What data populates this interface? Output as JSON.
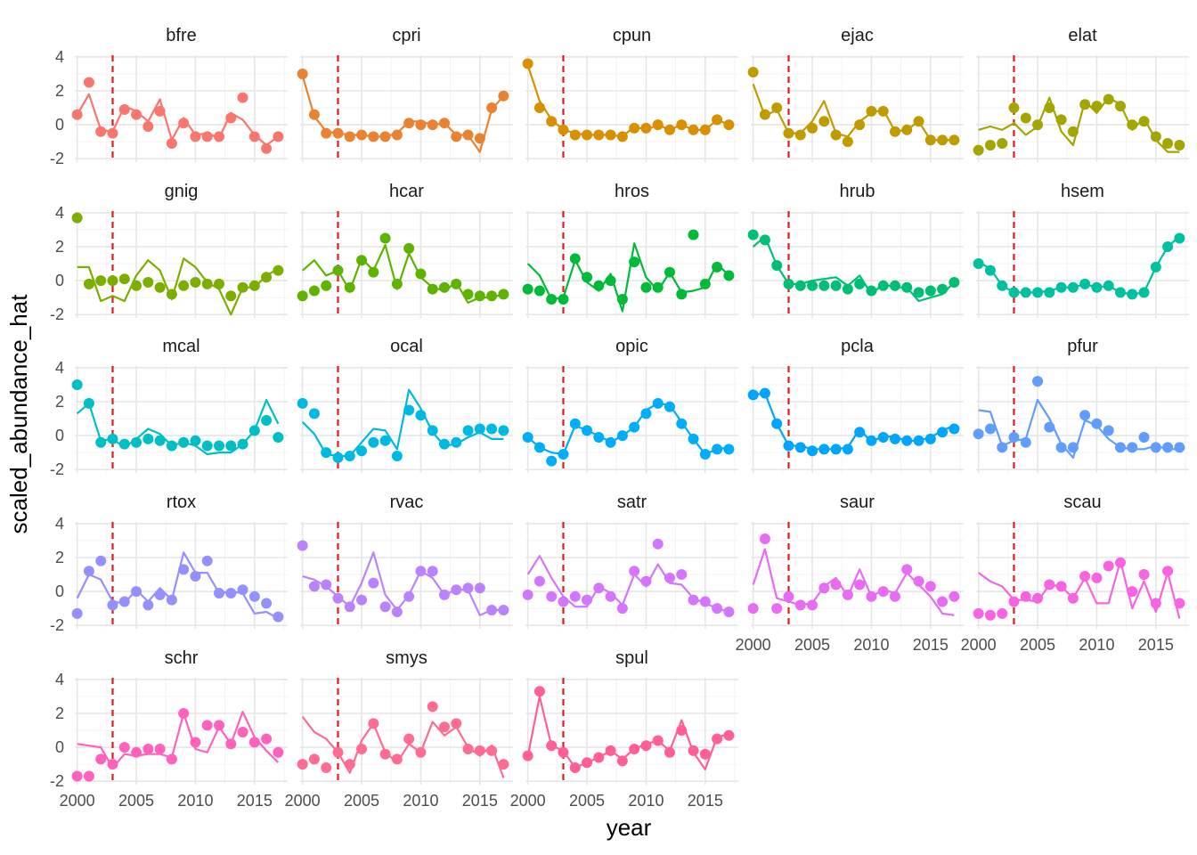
{
  "chart_data": {
    "type": "line",
    "xlabel": "year",
    "ylabel": "scaled_abundance_hat",
    "xlim": [
      1999.8,
      2017.8
    ],
    "ylim": [
      -2.2,
      4.1
    ],
    "x_ticks": [
      2000,
      2005,
      2010,
      2015
    ],
    "y_ticks": [
      -2,
      0,
      2,
      4
    ],
    "reference_line": {
      "x": 2003,
      "color": "#E41A1C",
      "style": "dashed"
    },
    "grid": true,
    "legend": "none",
    "years": [
      2000,
      2001,
      2002,
      2003,
      2004,
      2005,
      2006,
      2007,
      2008,
      2009,
      2010,
      2011,
      2012,
      2013,
      2014,
      2015,
      2016,
      2017
    ],
    "panels": [
      {
        "name": "bfre",
        "color": "#F8766D",
        "points": [
          0.6,
          2.5,
          -0.4,
          -0.5,
          0.9,
          0.6,
          -0.1,
          0.8,
          -1.1,
          0.1,
          -0.7,
          -0.7,
          -0.7,
          0.4,
          1.6,
          -0.7,
          -1.4,
          -0.7
        ],
        "line": [
          0.6,
          1.8,
          -0.3,
          -0.4,
          1.1,
          0.8,
          0.2,
          1.5,
          -0.9,
          0.4,
          -0.6,
          -0.5,
          -0.8,
          0.7,
          0.3,
          -0.6,
          -1.2,
          -0.7
        ]
      },
      {
        "name": "cpri",
        "color": "#EA8331",
        "points": [
          3.0,
          0.6,
          -0.5,
          -0.5,
          -0.7,
          -0.6,
          -0.7,
          -0.7,
          -0.6,
          0.1,
          0.0,
          0.0,
          0.1,
          -0.7,
          -0.6,
          -0.8,
          1.0,
          1.7
        ],
        "line": [
          2.9,
          0.5,
          -0.4,
          -0.5,
          -0.6,
          -0.6,
          -0.7,
          -0.7,
          -0.5,
          0.2,
          0.2,
          0.0,
          0.1,
          -0.6,
          -0.6,
          -1.6,
          0.9,
          1.7
        ]
      },
      {
        "name": "cpun",
        "color": "#D89000",
        "points": [
          3.6,
          1.0,
          0.2,
          -0.3,
          -0.6,
          -0.6,
          -0.6,
          -0.6,
          -0.7,
          -0.2,
          -0.2,
          0.0,
          -0.3,
          0.0,
          -0.3,
          -0.3,
          0.3,
          0.0
        ],
        "line": [
          3.5,
          1.4,
          0.3,
          -0.3,
          -0.5,
          -0.6,
          -0.6,
          -0.6,
          -0.7,
          -0.1,
          -0.3,
          0.0,
          -0.3,
          0.0,
          -0.3,
          -0.3,
          0.3,
          0.0
        ]
      },
      {
        "name": "ejac",
        "color": "#C09B00",
        "points": [
          3.1,
          0.6,
          1.0,
          -0.5,
          -0.6,
          -0.2,
          0.2,
          -0.6,
          -1.0,
          0.0,
          0.8,
          0.8,
          -0.4,
          -0.3,
          0.2,
          -0.9,
          -0.9,
          -0.9
        ],
        "line": [
          2.4,
          0.5,
          0.9,
          -0.5,
          -0.5,
          0.2,
          1.4,
          -0.5,
          -0.7,
          0.2,
          0.7,
          0.9,
          -0.4,
          -0.3,
          0.2,
          -0.9,
          -0.9,
          -0.9
        ]
      },
      {
        "name": "elat",
        "color": "#A3A500",
        "points": [
          -1.5,
          -1.2,
          -1.1,
          1.0,
          0.4,
          0.0,
          1.0,
          0.3,
          -0.4,
          1.2,
          1.1,
          1.5,
          1.1,
          0.0,
          0.2,
          -0.7,
          -1.1,
          -1.2
        ],
        "line": [
          -0.3,
          -0.1,
          -0.3,
          0.1,
          -0.6,
          -0.1,
          1.6,
          -0.4,
          -1.2,
          1.4,
          0.7,
          1.6,
          1.2,
          -0.3,
          0.4,
          -0.9,
          -1.6,
          -1.6
        ]
      },
      {
        "name": "gnig",
        "color": "#7CAE00",
        "points": [
          3.7,
          -0.2,
          0.0,
          0.0,
          0.1,
          -0.3,
          -0.1,
          -0.4,
          -0.8,
          -0.3,
          -0.1,
          -0.2,
          -0.2,
          -0.9,
          -0.4,
          -0.3,
          0.2,
          0.6
        ],
        "line": [
          0.8,
          0.8,
          -1.2,
          -0.9,
          -1.2,
          0.3,
          1.2,
          0.6,
          -1.1,
          1.3,
          0.8,
          -0.1,
          -0.5,
          -2.0,
          -0.4,
          -0.4,
          0.3,
          0.7
        ]
      },
      {
        "name": "hcar",
        "color": "#5EB300",
        "points": [
          -0.9,
          -0.6,
          -0.3,
          0.6,
          -0.4,
          1.2,
          0.5,
          2.5,
          -0.2,
          1.9,
          0.4,
          -0.5,
          -0.4,
          -0.2,
          -0.8,
          -0.9,
          -0.9,
          -0.8
        ],
        "line": [
          0.6,
          1.2,
          0.3,
          0.6,
          -0.6,
          1.3,
          0.6,
          2.1,
          -0.5,
          1.6,
          0.2,
          -0.4,
          -0.6,
          -0.1,
          -1.3,
          -1.0,
          -1.0,
          -0.8
        ]
      },
      {
        "name": "hros",
        "color": "#00BA38",
        "points": [
          -0.5,
          -0.6,
          -1.1,
          -1.1,
          1.3,
          0.2,
          -0.3,
          0.0,
          -1.1,
          1.1,
          -0.4,
          -0.4,
          0.5,
          -0.8,
          2.7,
          -0.2,
          0.8,
          0.3
        ],
        "line": [
          1.0,
          0.3,
          -1.1,
          -1.0,
          1.2,
          -0.1,
          -0.6,
          0.4,
          -1.8,
          2.2,
          0.2,
          -0.6,
          0.5,
          -0.7,
          -0.6,
          -0.4,
          1.0,
          0.3
        ]
      },
      {
        "name": "hrub",
        "color": "#00BF74",
        "points": [
          2.7,
          2.4,
          0.9,
          -0.2,
          -0.3,
          -0.3,
          -0.3,
          -0.3,
          -0.5,
          -0.2,
          -0.6,
          -0.3,
          -0.3,
          -0.4,
          -0.7,
          -0.6,
          -0.5,
          -0.1
        ],
        "line": [
          2.0,
          2.6,
          0.9,
          -0.2,
          -0.2,
          0.0,
          0.1,
          0.2,
          -0.3,
          0.3,
          -0.8,
          -0.2,
          -0.4,
          -0.4,
          -1.2,
          -1.0,
          -0.8,
          -0.1
        ]
      },
      {
        "name": "hsem",
        "color": "#00C19F",
        "points": [
          1.0,
          0.6,
          -0.3,
          -0.7,
          -0.7,
          -0.7,
          -0.7,
          -0.4,
          -0.4,
          -0.2,
          -0.4,
          -0.3,
          -0.7,
          -0.8,
          -0.7,
          0.8,
          2.0,
          2.5
        ],
        "line": [
          1.1,
          0.7,
          -0.3,
          -0.7,
          -0.7,
          -0.7,
          -0.6,
          -0.4,
          -0.4,
          -0.2,
          -0.4,
          -0.3,
          -0.7,
          -0.8,
          -0.7,
          0.8,
          2.0,
          2.6
        ]
      },
      {
        "name": "mcal",
        "color": "#00BFC4",
        "points": [
          3.0,
          1.9,
          -0.4,
          -0.2,
          -0.5,
          -0.4,
          -0.2,
          -0.3,
          -0.6,
          -0.4,
          -0.3,
          -0.6,
          -0.6,
          -0.6,
          -0.5,
          0.3,
          0.9,
          -0.1
        ],
        "line": [
          1.3,
          1.9,
          -0.3,
          -0.2,
          -0.7,
          -0.2,
          0.4,
          0.1,
          -0.6,
          -0.4,
          -0.6,
          -1.1,
          -1.0,
          -1.0,
          -0.5,
          0.3,
          2.1,
          0.7
        ]
      },
      {
        "name": "ocal",
        "color": "#00B9E3",
        "points": [
          1.9,
          1.3,
          -1.0,
          -1.3,
          -1.2,
          -0.9,
          -0.4,
          -0.3,
          -1.2,
          1.5,
          1.2,
          0.3,
          -0.5,
          -0.4,
          0.3,
          0.4,
          0.4,
          0.3
        ],
        "line": [
          0.8,
          0.1,
          -1.1,
          -1.2,
          -1.2,
          -0.4,
          0.4,
          0.3,
          -0.8,
          2.7,
          1.6,
          0.2,
          -0.6,
          -0.5,
          -0.1,
          0.2,
          -0.2,
          -0.2
        ]
      },
      {
        "name": "opic",
        "color": "#00ADFA",
        "points": [
          -0.1,
          -0.7,
          -1.5,
          -1.1,
          0.7,
          0.3,
          -0.1,
          -0.4,
          0.0,
          0.5,
          1.3,
          1.9,
          1.7,
          0.7,
          -0.2,
          -1.1,
          -0.8,
          -0.8
        ],
        "line": [
          -0.1,
          -0.7,
          -1.0,
          -1.1,
          0.6,
          0.3,
          0.0,
          -0.4,
          0.0,
          0.5,
          1.5,
          1.9,
          1.8,
          0.8,
          -0.2,
          -1.1,
          -0.8,
          -0.7
        ]
      },
      {
        "name": "pcla",
        "color": "#00A5FF",
        "points": [
          2.4,
          2.5,
          0.7,
          -0.6,
          -0.7,
          -0.9,
          -0.8,
          -0.8,
          -0.8,
          0.2,
          -0.3,
          -0.1,
          -0.2,
          -0.3,
          -0.3,
          -0.2,
          0.2,
          0.4
        ],
        "line": [
          2.4,
          2.5,
          0.7,
          -0.6,
          -0.6,
          -0.8,
          -0.8,
          -0.8,
          -0.7,
          0.4,
          -0.4,
          0.0,
          -0.1,
          -0.3,
          -0.3,
          -0.1,
          0.3,
          0.6
        ]
      },
      {
        "name": "pfur",
        "color": "#619CFF",
        "points": [
          0.1,
          0.4,
          -0.7,
          -0.1,
          -0.4,
          3.2,
          0.5,
          -0.7,
          -0.7,
          1.2,
          0.7,
          0.3,
          -0.7,
          -0.7,
          -0.1,
          -0.7,
          -0.7,
          -0.7
        ],
        "line": [
          1.5,
          1.4,
          -0.6,
          -0.3,
          -0.2,
          2.1,
          1.0,
          -0.5,
          -1.3,
          0.9,
          0.6,
          -0.2,
          -0.7,
          -0.8,
          -0.8,
          -0.6,
          -0.8,
          -0.8
        ]
      },
      {
        "name": "rtox",
        "color": "#9590FF",
        "points": [
          -1.3,
          1.2,
          1.8,
          -0.8,
          -0.6,
          0.0,
          -0.8,
          -0.2,
          -0.5,
          1.3,
          0.9,
          1.8,
          -0.1,
          -0.1,
          0.1,
          -0.3,
          -0.7,
          -1.5
        ],
        "line": [
          -0.4,
          1.0,
          0.7,
          -0.6,
          -0.7,
          0.1,
          -0.6,
          0.2,
          -0.5,
          2.3,
          1.1,
          1.1,
          -0.1,
          0.0,
          -0.1,
          -1.3,
          -1.2,
          -1.6
        ]
      },
      {
        "name": "rvac",
        "color": "#B983FF",
        "points": [
          2.7,
          0.3,
          0.4,
          -0.4,
          -0.9,
          -0.5,
          0.5,
          -0.9,
          -1.2,
          -0.3,
          1.2,
          1.2,
          -0.2,
          0.1,
          0.2,
          0.2,
          -1.1,
          -1.1
        ],
        "line": [
          0.9,
          0.7,
          0.3,
          -0.3,
          -0.9,
          0.5,
          2.3,
          -0.2,
          -1.1,
          -0.2,
          1.2,
          0.8,
          -0.2,
          0.1,
          0.1,
          -1.4,
          -1.1,
          -1.1
        ]
      },
      {
        "name": "satr",
        "color": "#D376FF",
        "points": [
          -0.2,
          0.6,
          -0.3,
          -0.6,
          -0.3,
          -0.5,
          0.2,
          -0.3,
          -1.0,
          1.2,
          0.6,
          2.8,
          0.8,
          1.0,
          -0.5,
          -0.6,
          -1.0,
          -1.2
        ],
        "line": [
          1.0,
          2.1,
          0.8,
          -0.3,
          -0.9,
          -0.9,
          0.3,
          -0.1,
          -0.8,
          1.0,
          0.3,
          1.6,
          0.5,
          0.4,
          -0.4,
          -0.7,
          -1.0,
          -1.2
        ]
      },
      {
        "name": "saur",
        "color": "#E76BF3",
        "points": [
          -1.0,
          3.1,
          -1.0,
          -0.3,
          -0.8,
          -0.8,
          0.2,
          0.4,
          -0.2,
          0.4,
          -0.3,
          0.0,
          -0.3,
          1.3,
          0.6,
          0.3,
          -0.6,
          -0.3
        ],
        "line": [
          0.4,
          2.5,
          -0.4,
          -0.6,
          -0.8,
          -0.7,
          0.3,
          0.8,
          -0.3,
          1.3,
          -0.3,
          0.1,
          -0.1,
          1.1,
          0.4,
          -0.3,
          -1.3,
          -1.4
        ]
      },
      {
        "name": "scau",
        "color": "#F763E0",
        "points": [
          -1.3,
          -1.4,
          -1.3,
          -0.6,
          -0.3,
          -0.4,
          0.4,
          0.3,
          -0.4,
          0.9,
          0.8,
          1.5,
          1.7,
          0.0,
          1.0,
          -0.7,
          1.2,
          -0.7
        ],
        "line": [
          1.1,
          0.6,
          0.3,
          -0.5,
          -0.5,
          -0.6,
          0.4,
          0.3,
          -0.4,
          0.8,
          -0.7,
          -0.7,
          1.8,
          -1.0,
          0.6,
          -1.2,
          1.1,
          -1.6
        ]
      },
      {
        "name": "schr",
        "color": "#FF62BC",
        "points": [
          -1.7,
          -1.7,
          -0.7,
          -1.0,
          0.0,
          -0.3,
          -0.1,
          -0.1,
          -0.7,
          2.0,
          0.3,
          1.3,
          1.3,
          0.2,
          0.9,
          0.3,
          0.5,
          -0.3
        ],
        "line": [
          0.2,
          0.1,
          0.0,
          -1.2,
          -0.4,
          -0.5,
          -0.4,
          -0.4,
          -0.6,
          2.0,
          -0.1,
          -0.3,
          1.2,
          0.2,
          2.1,
          0.6,
          -0.2,
          -0.9
        ]
      },
      {
        "name": "smys",
        "color": "#FF6C91",
        "points": [
          -1.0,
          -0.7,
          -1.2,
          -0.3,
          -1.0,
          -0.1,
          1.4,
          -0.4,
          -0.7,
          0.5,
          -0.3,
          2.4,
          1.2,
          1.4,
          -0.1,
          -0.2,
          -0.2,
          -1.0
        ],
        "line": [
          1.8,
          0.9,
          0.5,
          -0.3,
          -1.5,
          0.4,
          1.4,
          -0.3,
          -0.9,
          0.2,
          -0.3,
          1.5,
          0.7,
          1.2,
          0.0,
          -0.5,
          0.1,
          -1.8
        ]
      },
      {
        "name": "spul",
        "color": "#FF5F96",
        "points": [
          -0.5,
          3.3,
          0.1,
          -0.3,
          -1.2,
          -0.9,
          -0.6,
          -0.2,
          -0.8,
          -0.1,
          0.1,
          0.4,
          -0.3,
          1.0,
          -0.2,
          -0.4,
          0.5,
          0.7
        ],
        "line": [
          -0.5,
          3.0,
          0.1,
          -0.2,
          -1.2,
          -0.9,
          -0.6,
          -0.2,
          -0.7,
          -0.1,
          0.2,
          0.4,
          -0.2,
          1.6,
          -0.3,
          -1.3,
          0.6,
          0.8
        ]
      }
    ]
  }
}
